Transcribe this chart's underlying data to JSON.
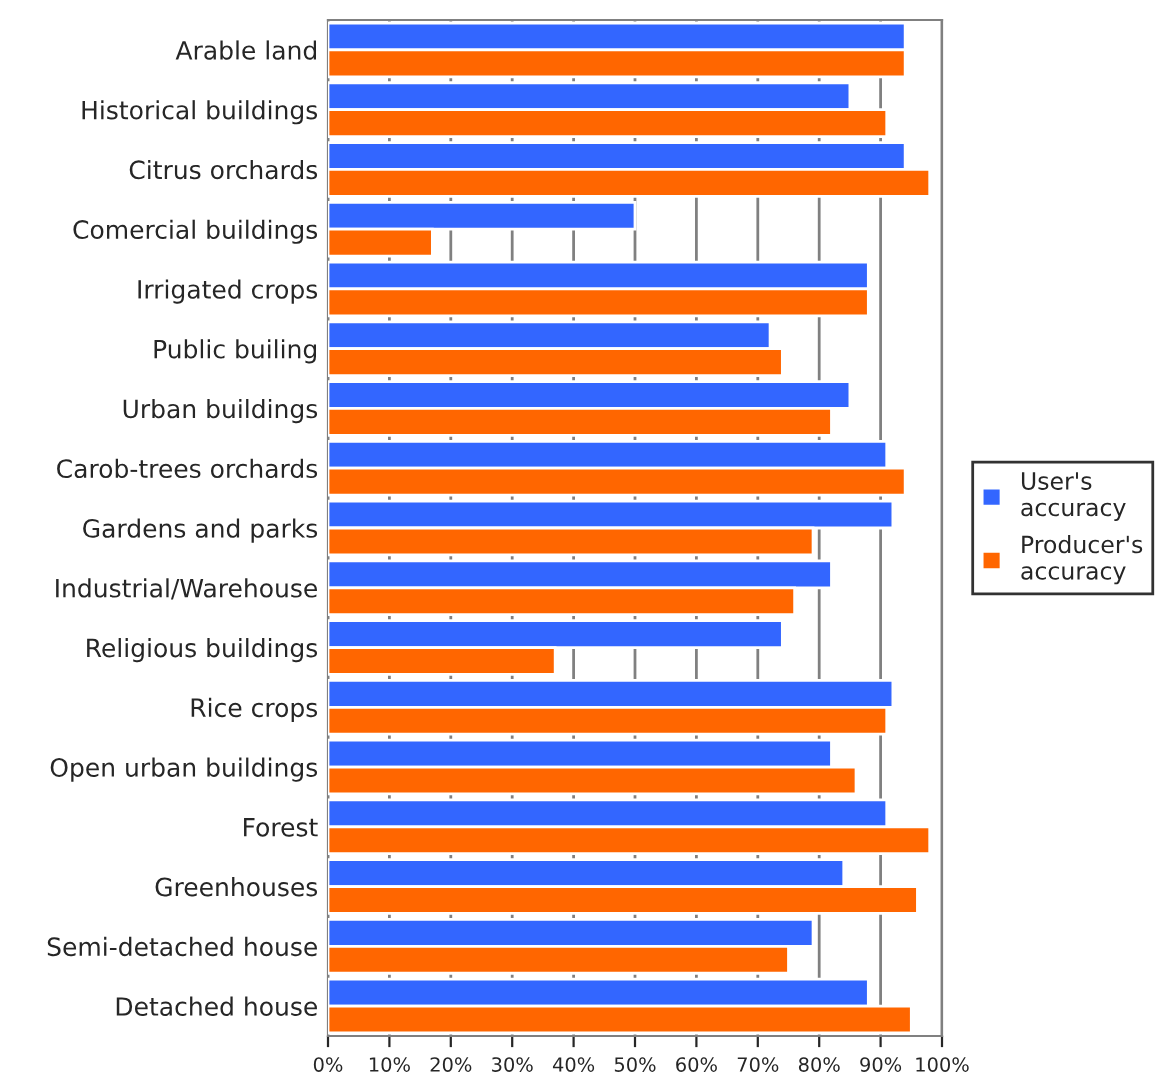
{
  "chart_data": {
    "type": "bar",
    "orientation": "horizontal",
    "categories": [
      "Arable land",
      "Historical buildings",
      "Citrus orchards",
      "Comercial buildings",
      "Irrigated crops",
      "Public builing",
      "Urban buildings",
      "Carob-trees orchards",
      "Gardens and parks",
      "Industrial/Warehouse",
      "Religious buildings",
      "Rice crops",
      "Open urban buildings",
      "Forest",
      "Greenhouses",
      "Semi-detached house",
      "Detached house"
    ],
    "series": [
      {
        "name": "User's accuracy",
        "color": "#3366ff",
        "values": [
          94,
          85,
          94,
          50,
          88,
          72,
          85,
          91,
          92,
          82,
          74,
          92,
          82,
          91,
          84,
          79,
          88
        ]
      },
      {
        "name": "Producer's accuracy",
        "color": "#ff6600",
        "values": [
          94,
          91,
          98,
          17,
          88,
          74,
          82,
          94,
          79,
          76,
          37,
          91,
          86,
          98,
          96,
          75,
          95
        ]
      }
    ],
    "xlim": [
      0,
      100
    ],
    "xticks": [
      {
        "value": 0,
        "label": "0%"
      },
      {
        "value": 10,
        "label": "10%"
      },
      {
        "value": 20,
        "label": "20%"
      },
      {
        "value": 30,
        "label": "30%"
      },
      {
        "value": 40,
        "label": "40%"
      },
      {
        "value": 50,
        "label": "50%"
      },
      {
        "value": 60,
        "label": "60%"
      },
      {
        "value": 70,
        "label": "70%"
      },
      {
        "value": 80,
        "label": "80%"
      },
      {
        "value": 90,
        "label": "90%"
      },
      {
        "value": 100,
        "label": "100%"
      }
    ],
    "grid": "x",
    "legend": "right"
  }
}
